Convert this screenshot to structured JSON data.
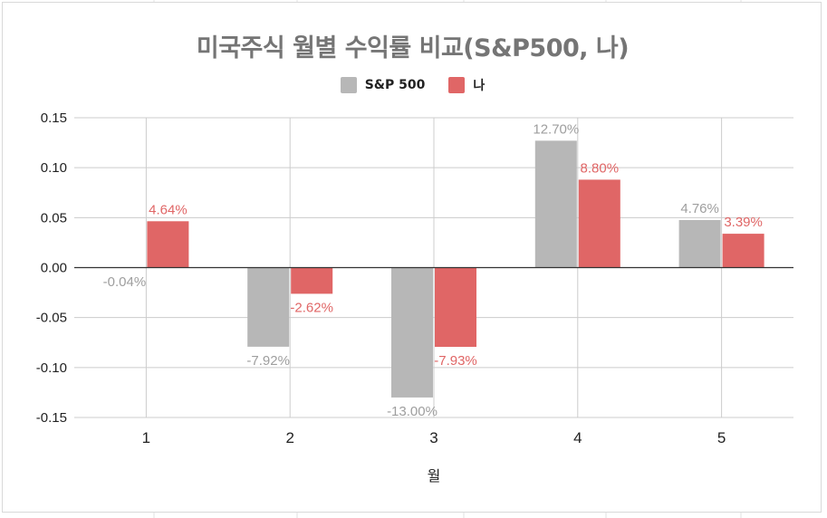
{
  "colors": {
    "sp500": "#b7b7b7",
    "me": "#e06666",
    "grid": "#cccccc",
    "sheet_grid": "#e2e2e2",
    "zero_line": "#333333"
  },
  "chart_data": {
    "type": "bar",
    "title": "미국주식 월별 수익률 비교(S&P500, 나)",
    "xlabel": "월",
    "ylabel": "",
    "categories": [
      "1",
      "2",
      "3",
      "4",
      "5"
    ],
    "ylim": [
      -0.15,
      0.15
    ],
    "yticks": [
      "0.15",
      "0.10",
      "0.05",
      "0.00",
      "-0.05",
      "-0.10",
      "-0.15"
    ],
    "ytick_values": [
      0.15,
      0.1,
      0.05,
      0.0,
      -0.05,
      -0.1,
      -0.15
    ],
    "grid": true,
    "legend_position": "top-center",
    "series": [
      {
        "name": "S&P 500",
        "values": [
          -0.0004,
          -0.0792,
          -0.13,
          0.127,
          0.0476
        ],
        "labels": [
          "-0.04%",
          "-7.92%",
          "-13.00%",
          "12.70%",
          "4.76%"
        ]
      },
      {
        "name": "나",
        "values": [
          0.0464,
          -0.0262,
          -0.0793,
          0.088,
          0.0339
        ],
        "labels": [
          "4.64%",
          "-2.62%",
          "-7.93%",
          "8.80%",
          "3.39%"
        ]
      }
    ]
  }
}
